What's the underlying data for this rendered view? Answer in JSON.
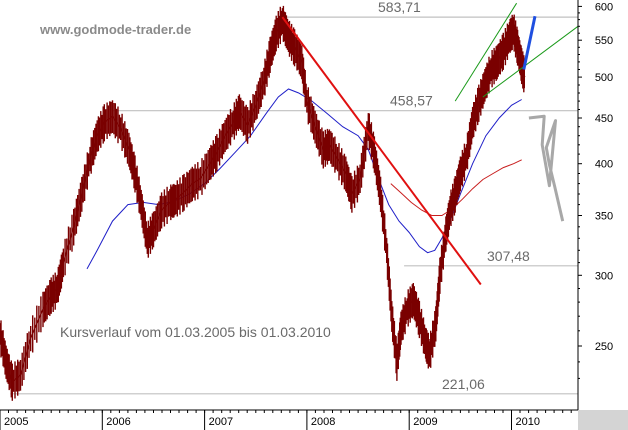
{
  "watermark": "www.godmode-trader.de",
  "subtitle": "Kursverlauf vom 01.03.2005 bis 01.03.2010",
  "colors": {
    "price": "#7a0000",
    "ma_fast": "#1f1fc8",
    "ma_slow": "#c81e1e",
    "trendline": "#e01010",
    "channel": "#1a9a1a",
    "projection_up": "#1f4fe0",
    "projection_down": "#a8a8a8",
    "level_line": "#c0c0c0"
  },
  "chart_data": {
    "type": "line",
    "title": "",
    "xlabel": "",
    "ylabel": "",
    "y_scale": "log",
    "ylim": [
      212,
      610
    ],
    "xlim": [
      2005.0,
      2010.65
    ],
    "yticks": [
      250,
      300,
      350,
      400,
      450,
      500,
      550,
      600
    ],
    "xticks": [
      {
        "label": "2005",
        "x": 2005.0
      },
      {
        "label": "2006",
        "x": 2006.0
      },
      {
        "label": "2007",
        "x": 2007.0
      },
      {
        "label": "2008",
        "x": 2008.0
      },
      {
        "label": "2009",
        "x": 2009.0
      },
      {
        "label": "2010",
        "x": 2010.0
      }
    ],
    "levels": [
      {
        "label": "583,71",
        "value": 583.71,
        "from": 2007.78
      },
      {
        "label": "458,57",
        "value": 458.57,
        "from": 2006.1
      },
      {
        "label": "307,48",
        "value": 307.48,
        "from": 2008.95
      },
      {
        "label": "221,06",
        "value": 221.06,
        "from": 2005.1
      }
    ],
    "series": [
      {
        "kind": "price",
        "points": [
          [
            2005.0,
            258
          ],
          [
            2005.06,
            240
          ],
          [
            2005.12,
            228
          ],
          [
            2005.2,
            232
          ],
          [
            2005.3,
            255
          ],
          [
            2005.42,
            275
          ],
          [
            2005.5,
            285
          ],
          [
            2005.56,
            290
          ],
          [
            2005.62,
            310
          ],
          [
            2005.72,
            340
          ],
          [
            2005.8,
            370
          ],
          [
            2005.88,
            405
          ],
          [
            2005.95,
            430
          ],
          [
            2006.02,
            445
          ],
          [
            2006.1,
            452
          ],
          [
            2006.18,
            438
          ],
          [
            2006.26,
            415
          ],
          [
            2006.32,
            390
          ],
          [
            2006.38,
            360
          ],
          [
            2006.44,
            328
          ],
          [
            2006.5,
            338
          ],
          [
            2006.58,
            355
          ],
          [
            2006.66,
            362
          ],
          [
            2006.72,
            365
          ],
          [
            2006.8,
            372
          ],
          [
            2006.88,
            380
          ],
          [
            2006.96,
            385
          ],
          [
            2007.05,
            400
          ],
          [
            2007.12,
            412
          ],
          [
            2007.2,
            430
          ],
          [
            2007.28,
            445
          ],
          [
            2007.34,
            458
          ],
          [
            2007.42,
            442
          ],
          [
            2007.5,
            465
          ],
          [
            2007.58,
            495
          ],
          [
            2007.64,
            530
          ],
          [
            2007.7,
            560
          ],
          [
            2007.76,
            578
          ],
          [
            2007.82,
            555
          ],
          [
            2007.88,
            540
          ],
          [
            2007.95,
            520
          ],
          [
            2008.0,
            470
          ],
          [
            2008.08,
            440
          ],
          [
            2008.16,
            415
          ],
          [
            2008.22,
            420
          ],
          [
            2008.3,
            405
          ],
          [
            2008.38,
            390
          ],
          [
            2008.44,
            370
          ],
          [
            2008.52,
            385
          ],
          [
            2008.6,
            440
          ],
          [
            2008.66,
            410
          ],
          [
            2008.72,
            370
          ],
          [
            2008.78,
            320
          ],
          [
            2008.83,
            270
          ],
          [
            2008.88,
            240
          ],
          [
            2008.92,
            262
          ],
          [
            2008.98,
            275
          ],
          [
            2009.04,
            282
          ],
          [
            2009.1,
            268
          ],
          [
            2009.16,
            252
          ],
          [
            2009.2,
            245
          ],
          [
            2009.26,
            265
          ],
          [
            2009.3,
            300
          ],
          [
            2009.35,
            330
          ],
          [
            2009.4,
            355
          ],
          [
            2009.45,
            370
          ],
          [
            2009.5,
            390
          ],
          [
            2009.56,
            408
          ],
          [
            2009.62,
            445
          ],
          [
            2009.68,
            468
          ],
          [
            2009.74,
            490
          ],
          [
            2009.8,
            510
          ],
          [
            2009.86,
            520
          ],
          [
            2009.92,
            535
          ],
          [
            2009.98,
            555
          ],
          [
            2010.02,
            565
          ],
          [
            2010.06,
            540
          ],
          [
            2010.1,
            515
          ],
          [
            2010.13,
            500
          ]
        ]
      },
      {
        "kind": "ma_fast",
        "points": [
          [
            2005.85,
            305
          ],
          [
            2005.95,
            320
          ],
          [
            2006.1,
            345
          ],
          [
            2006.25,
            360
          ],
          [
            2006.4,
            362
          ],
          [
            2006.55,
            360
          ],
          [
            2006.7,
            363
          ],
          [
            2006.85,
            370
          ],
          [
            2007.0,
            380
          ],
          [
            2007.15,
            395
          ],
          [
            2007.3,
            412
          ],
          [
            2007.45,
            430
          ],
          [
            2007.6,
            455
          ],
          [
            2007.72,
            475
          ],
          [
            2007.82,
            485
          ],
          [
            2007.92,
            480
          ],
          [
            2008.05,
            470
          ],
          [
            2008.2,
            455
          ],
          [
            2008.35,
            440
          ],
          [
            2008.5,
            430
          ],
          [
            2008.6,
            415
          ],
          [
            2008.7,
            385
          ],
          [
            2008.8,
            360
          ],
          [
            2008.9,
            345
          ],
          [
            2009.0,
            335
          ],
          [
            2009.1,
            323
          ],
          [
            2009.18,
            318
          ],
          [
            2009.25,
            320
          ],
          [
            2009.32,
            330
          ],
          [
            2009.4,
            345
          ],
          [
            2009.5,
            370
          ],
          [
            2009.62,
            400
          ],
          [
            2009.75,
            430
          ],
          [
            2009.88,
            450
          ],
          [
            2010.0,
            465
          ],
          [
            2010.1,
            472
          ]
        ]
      },
      {
        "kind": "ma_slow",
        "points": [
          [
            2008.82,
            380
          ],
          [
            2008.92,
            371
          ],
          [
            2009.02,
            362
          ],
          [
            2009.12,
            355
          ],
          [
            2009.22,
            350
          ],
          [
            2009.32,
            350
          ],
          [
            2009.42,
            356
          ],
          [
            2009.52,
            365
          ],
          [
            2009.62,
            375
          ],
          [
            2009.72,
            384
          ],
          [
            2009.82,
            390
          ],
          [
            2009.92,
            396
          ],
          [
            2010.02,
            400
          ],
          [
            2010.1,
            404
          ]
        ]
      }
    ],
    "annotations": [
      {
        "kind": "trendline",
        "points": [
          [
            2007.76,
            583.71
          ],
          [
            2009.7,
            293
          ]
        ]
      },
      {
        "kind": "channel",
        "points": [
          [
            2009.45,
            470
          ],
          [
            2010.05,
            605
          ]
        ]
      },
      {
        "kind": "channel",
        "points": [
          [
            2009.72,
            475
          ],
          [
            2010.65,
            570
          ]
        ]
      },
      {
        "kind": "projection_up",
        "points": [
          [
            2010.12,
            510
          ],
          [
            2010.23,
            585
          ]
        ]
      },
      {
        "kind": "projection_down",
        "points": [
          [
            2010.17,
            450
          ],
          [
            2010.32,
            452
          ],
          [
            2010.3,
            420
          ],
          [
            2010.37,
            378
          ],
          [
            2010.43,
            447
          ],
          [
            2010.34,
            417
          ],
          [
            2010.37,
            399
          ],
          [
            2010.42,
            378
          ],
          [
            2010.5,
            345
          ]
        ]
      }
    ]
  }
}
